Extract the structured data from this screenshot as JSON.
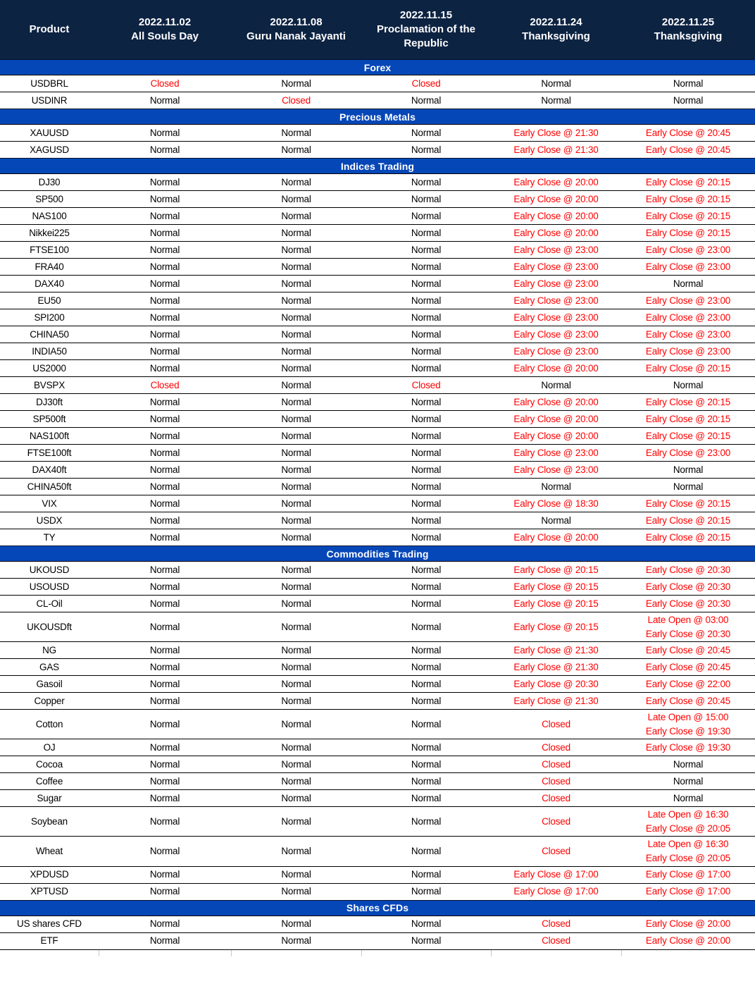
{
  "colors": {
    "header_bg": "#0d2342",
    "section_bg": "#0647b8",
    "status_normal": "#000000",
    "status_alert": "#ff0000",
    "header_text": "#ffffff",
    "row_border": "#000000"
  },
  "header": {
    "product_label": "Product",
    "columns": [
      {
        "date": "2022.11.02",
        "holiday": "All Souls Day"
      },
      {
        "date": "2022.11.08",
        "holiday": "Guru Nanak Jayanti"
      },
      {
        "date": "2022.11.15",
        "holiday": "Proclamation of the Republic"
      },
      {
        "date": "2022.11.24",
        "holiday": "Thanksgiving"
      },
      {
        "date": "2022.11.25",
        "holiday": "Thanksgiving"
      }
    ]
  },
  "sections": [
    {
      "title": "Forex",
      "rows": [
        {
          "product": "USDBRL",
          "values": [
            "Closed",
            "Normal",
            "Closed",
            "Normal",
            "Normal"
          ]
        },
        {
          "product": "USDINR",
          "values": [
            "Normal",
            "Closed",
            "Normal",
            "Normal",
            "Normal"
          ]
        }
      ]
    },
    {
      "title": "Precious Metals",
      "rows": [
        {
          "product": "XAUUSD",
          "values": [
            "Normal",
            "Normal",
            "Normal",
            "Early Close @ 21:30",
            "Early Close @ 20:45"
          ]
        },
        {
          "product": "XAGUSD",
          "values": [
            "Normal",
            "Normal",
            "Normal",
            "Early Close @ 21:30",
            "Early Close @ 20:45"
          ]
        }
      ]
    },
    {
      "title": "Indices Trading",
      "rows": [
        {
          "product": "DJ30",
          "values": [
            "Normal",
            "Normal",
            "Normal",
            "Ealry Close @ 20:00",
            "Ealry Close @ 20:15"
          ]
        },
        {
          "product": "SP500",
          "values": [
            "Normal",
            "Normal",
            "Normal",
            "Ealry Close @ 20:00",
            "Ealry Close @ 20:15"
          ]
        },
        {
          "product": "NAS100",
          "values": [
            "Normal",
            "Normal",
            "Normal",
            "Ealry Close @ 20:00",
            "Ealry Close @ 20:15"
          ]
        },
        {
          "product": "Nikkei225",
          "values": [
            "Normal",
            "Normal",
            "Normal",
            "Ealry Close @ 20:00",
            "Ealry Close @ 20:15"
          ]
        },
        {
          "product": "FTSE100",
          "values": [
            "Normal",
            "Normal",
            "Normal",
            "Ealry Close @ 23:00",
            "Ealry Close @ 23:00"
          ]
        },
        {
          "product": "FRA40",
          "values": [
            "Normal",
            "Normal",
            "Normal",
            "Ealry Close @ 23:00",
            "Ealry Close @ 23:00"
          ]
        },
        {
          "product": "DAX40",
          "values": [
            "Normal",
            "Normal",
            "Normal",
            "Ealry Close @ 23:00",
            "Normal"
          ]
        },
        {
          "product": "EU50",
          "values": [
            "Normal",
            "Normal",
            "Normal",
            "Ealry Close @ 23:00",
            "Ealry Close @ 23:00"
          ]
        },
        {
          "product": "SPI200",
          "values": [
            "Normal",
            "Normal",
            "Normal",
            "Ealry Close @ 23:00",
            "Ealry Close @ 23:00"
          ]
        },
        {
          "product": "CHINA50",
          "values": [
            "Normal",
            "Normal",
            "Normal",
            "Ealry Close @ 23:00",
            "Ealry Close @ 23:00"
          ]
        },
        {
          "product": "INDIA50",
          "values": [
            "Normal",
            "Normal",
            "Normal",
            "Ealry Close @ 23:00",
            "Ealry Close @ 23:00"
          ]
        },
        {
          "product": "US2000",
          "values": [
            "Normal",
            "Normal",
            "Normal",
            "Ealry Close @ 20:00",
            "Ealry Close @ 20:15"
          ]
        },
        {
          "product": "BVSPX",
          "values": [
            "Closed",
            "Normal",
            "Closed",
            "Normal",
            "Normal"
          ]
        },
        {
          "product": "DJ30ft",
          "values": [
            "Normal",
            "Normal",
            "Normal",
            "Ealry Close @ 20:00",
            "Ealry Close @ 20:15"
          ]
        },
        {
          "product": "SP500ft",
          "values": [
            "Normal",
            "Normal",
            "Normal",
            "Ealry Close @ 20:00",
            "Ealry Close @ 20:15"
          ]
        },
        {
          "product": "NAS100ft",
          "values": [
            "Normal",
            "Normal",
            "Normal",
            "Ealry Close @ 20:00",
            "Ealry Close @ 20:15"
          ]
        },
        {
          "product": "FTSE100ft",
          "values": [
            "Normal",
            "Normal",
            "Normal",
            "Ealry Close @ 23:00",
            "Ealry Close @ 23:00"
          ]
        },
        {
          "product": "DAX40ft",
          "values": [
            "Normal",
            "Normal",
            "Normal",
            "Ealry Close @ 23:00",
            "Normal"
          ]
        },
        {
          "product": "CHINA50ft",
          "values": [
            "Normal",
            "Normal",
            "Normal",
            "Normal",
            "Normal"
          ]
        },
        {
          "product": "VIX",
          "values": [
            "Normal",
            "Normal",
            "Normal",
            "Ealry Close @ 18:30",
            "Ealry Close @ 20:15"
          ]
        },
        {
          "product": "USDX",
          "values": [
            "Normal",
            "Normal",
            "Normal",
            "Normal",
            "Ealry Close @ 20:15"
          ]
        },
        {
          "product": "TY",
          "values": [
            "Normal",
            "Normal",
            "Normal",
            "Ealry Close @ 20:00",
            "Ealry Close @ 20:15"
          ]
        }
      ]
    },
    {
      "title": "Commodities Trading",
      "rows": [
        {
          "product": "UKOUSD",
          "values": [
            "Normal",
            "Normal",
            "Normal",
            "Early Close @ 20:15",
            "Early Close @ 20:30"
          ]
        },
        {
          "product": "USOUSD",
          "values": [
            "Normal",
            "Normal",
            "Normal",
            "Early Close @ 20:15",
            "Early Close @ 20:30"
          ]
        },
        {
          "product": "CL-Oil",
          "values": [
            "Normal",
            "Normal",
            "Normal",
            "Early Close @ 20:15",
            "Early Close @ 20:30"
          ]
        },
        {
          "product": "UKOUSDft",
          "values": [
            "Normal",
            "Normal",
            "Normal",
            "Early Close @ 20:15",
            [
              "Late Open @ 03:00",
              "Early Close @ 20:30"
            ]
          ]
        },
        {
          "product": "NG",
          "values": [
            "Normal",
            "Normal",
            "Normal",
            "Early Close @ 21:30",
            "Early Close @ 20:45"
          ]
        },
        {
          "product": "GAS",
          "values": [
            "Normal",
            "Normal",
            "Normal",
            "Early Close @ 21:30",
            "Early Close @ 20:45"
          ]
        },
        {
          "product": "Gasoil",
          "values": [
            "Normal",
            "Normal",
            "Normal",
            "Early Close @ 20:30",
            "Early Close @ 22:00"
          ]
        },
        {
          "product": "Copper",
          "values": [
            "Normal",
            "Normal",
            "Normal",
            "Early Close @ 21:30",
            "Early Close @ 20:45"
          ]
        },
        {
          "product": "Cotton",
          "values": [
            "Normal",
            "Normal",
            "Normal",
            "Closed",
            [
              "Late Open @ 15:00",
              "Early Close @ 19:30"
            ]
          ]
        },
        {
          "product": "OJ",
          "values": [
            "Normal",
            "Normal",
            "Normal",
            "Closed",
            "Early Close @ 19:30"
          ]
        },
        {
          "product": "Cocoa",
          "values": [
            "Normal",
            "Normal",
            "Normal",
            "Closed",
            "Normal"
          ]
        },
        {
          "product": "Coffee",
          "values": [
            "Normal",
            "Normal",
            "Normal",
            "Closed",
            "Normal"
          ]
        },
        {
          "product": "Sugar",
          "values": [
            "Normal",
            "Normal",
            "Normal",
            "Closed",
            "Normal"
          ]
        },
        {
          "product": "Soybean",
          "values": [
            "Normal",
            "Normal",
            "Normal",
            "Closed",
            [
              "Late Open @ 16:30",
              "Early Close @ 20:05"
            ]
          ]
        },
        {
          "product": "Wheat",
          "values": [
            "Normal",
            "Normal",
            "Normal",
            "Closed",
            [
              "Late Open @ 16:30",
              "Early Close @ 20:05"
            ]
          ]
        },
        {
          "product": "XPDUSD",
          "values": [
            "Normal",
            "Normal",
            "Normal",
            "Early Close @ 17:00",
            "Early Close @ 17:00"
          ]
        },
        {
          "product": "XPTUSD",
          "values": [
            "Normal",
            "Normal",
            "Normal",
            "Early Close @ 17:00",
            "Early Close @ 17:00"
          ]
        }
      ]
    },
    {
      "title": "Shares CFDs",
      "rows": [
        {
          "product": "US shares CFD",
          "values": [
            "Normal",
            "Normal",
            "Normal",
            "Closed",
            "Early Close @ 20:00"
          ]
        },
        {
          "product": "ETF",
          "values": [
            "Normal",
            "Normal",
            "Normal",
            "Closed",
            "Early Close @ 20:00"
          ]
        }
      ]
    }
  ]
}
